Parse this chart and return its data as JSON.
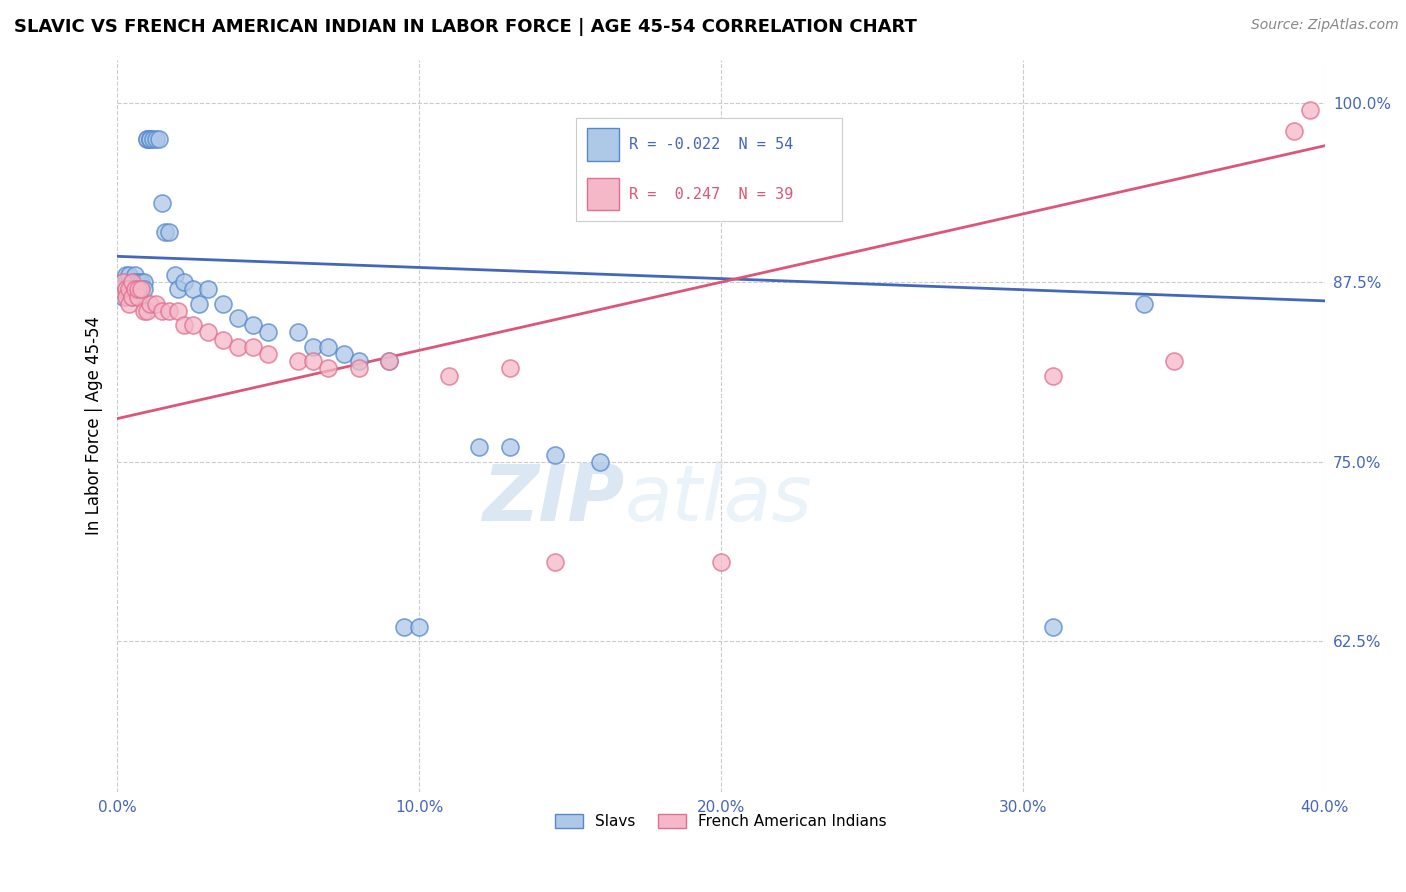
{
  "title": "SLAVIC VS FRENCH AMERICAN INDIAN IN LABOR FORCE | AGE 45-54 CORRELATION CHART",
  "source": "Source: ZipAtlas.com",
  "xlabel_slavs": "Slavs",
  "xlabel_french": "French American Indians",
  "ylabel": "In Labor Force | Age 45-54",
  "xlim": [
    0.0,
    0.4
  ],
  "ylim": [
    0.52,
    1.03
  ],
  "xticks": [
    0.0,
    0.1,
    0.2,
    0.3,
    0.4
  ],
  "xtick_labels": [
    "0.0%",
    "10.0%",
    "20.0%",
    "30.0%",
    "40.0%"
  ],
  "yticks": [
    0.625,
    0.75,
    0.875,
    1.0
  ],
  "ytick_labels": [
    "62.5%",
    "75.0%",
    "87.5%",
    "100.0%"
  ],
  "slavs_color": "#aec8e8",
  "french_color": "#f4b8c8",
  "slavs_edge_color": "#5588cc",
  "french_edge_color": "#e07090",
  "blue_line_color": "#4466bb",
  "pink_line_color": "#dd5577",
  "R_slavs": -0.022,
  "N_slavs": 54,
  "R_french": 0.247,
  "N_french": 39,
  "watermark_zip": "ZIP",
  "watermark_atlas": "atlas",
  "slavs_x": [
    0.001,
    0.002,
    0.002,
    0.003,
    0.003,
    0.004,
    0.004,
    0.005,
    0.005,
    0.005,
    0.006,
    0.006,
    0.006,
    0.007,
    0.007,
    0.007,
    0.008,
    0.008,
    0.009,
    0.009,
    0.01,
    0.01,
    0.011,
    0.011,
    0.012,
    0.013,
    0.014,
    0.015,
    0.016,
    0.017,
    0.019,
    0.02,
    0.022,
    0.025,
    0.027,
    0.03,
    0.035,
    0.04,
    0.045,
    0.05,
    0.06,
    0.065,
    0.07,
    0.075,
    0.08,
    0.09,
    0.095,
    0.1,
    0.12,
    0.13,
    0.145,
    0.16,
    0.31,
    0.34
  ],
  "slavs_y": [
    0.87,
    0.865,
    0.875,
    0.88,
    0.87,
    0.88,
    0.87,
    0.87,
    0.875,
    0.865,
    0.88,
    0.87,
    0.875,
    0.875,
    0.87,
    0.865,
    0.87,
    0.875,
    0.875,
    0.87,
    0.975,
    0.975,
    0.975,
    0.975,
    0.975,
    0.975,
    0.975,
    0.93,
    0.91,
    0.91,
    0.88,
    0.87,
    0.875,
    0.87,
    0.86,
    0.87,
    0.86,
    0.85,
    0.845,
    0.84,
    0.84,
    0.83,
    0.83,
    0.825,
    0.82,
    0.82,
    0.635,
    0.635,
    0.76,
    0.76,
    0.755,
    0.75,
    0.635,
    0.86
  ],
  "french_x": [
    0.001,
    0.002,
    0.003,
    0.003,
    0.004,
    0.004,
    0.005,
    0.005,
    0.006,
    0.007,
    0.007,
    0.008,
    0.009,
    0.01,
    0.011,
    0.013,
    0.015,
    0.017,
    0.02,
    0.022,
    0.025,
    0.03,
    0.035,
    0.04,
    0.045,
    0.05,
    0.06,
    0.065,
    0.07,
    0.08,
    0.09,
    0.11,
    0.13,
    0.145,
    0.2,
    0.31,
    0.35,
    0.39,
    0.395
  ],
  "french_y": [
    0.87,
    0.875,
    0.87,
    0.865,
    0.87,
    0.86,
    0.865,
    0.875,
    0.87,
    0.865,
    0.87,
    0.87,
    0.855,
    0.855,
    0.86,
    0.86,
    0.855,
    0.855,
    0.855,
    0.845,
    0.845,
    0.84,
    0.835,
    0.83,
    0.83,
    0.825,
    0.82,
    0.82,
    0.815,
    0.815,
    0.82,
    0.81,
    0.815,
    0.68,
    0.68,
    0.81,
    0.82,
    0.98,
    0.995
  ]
}
